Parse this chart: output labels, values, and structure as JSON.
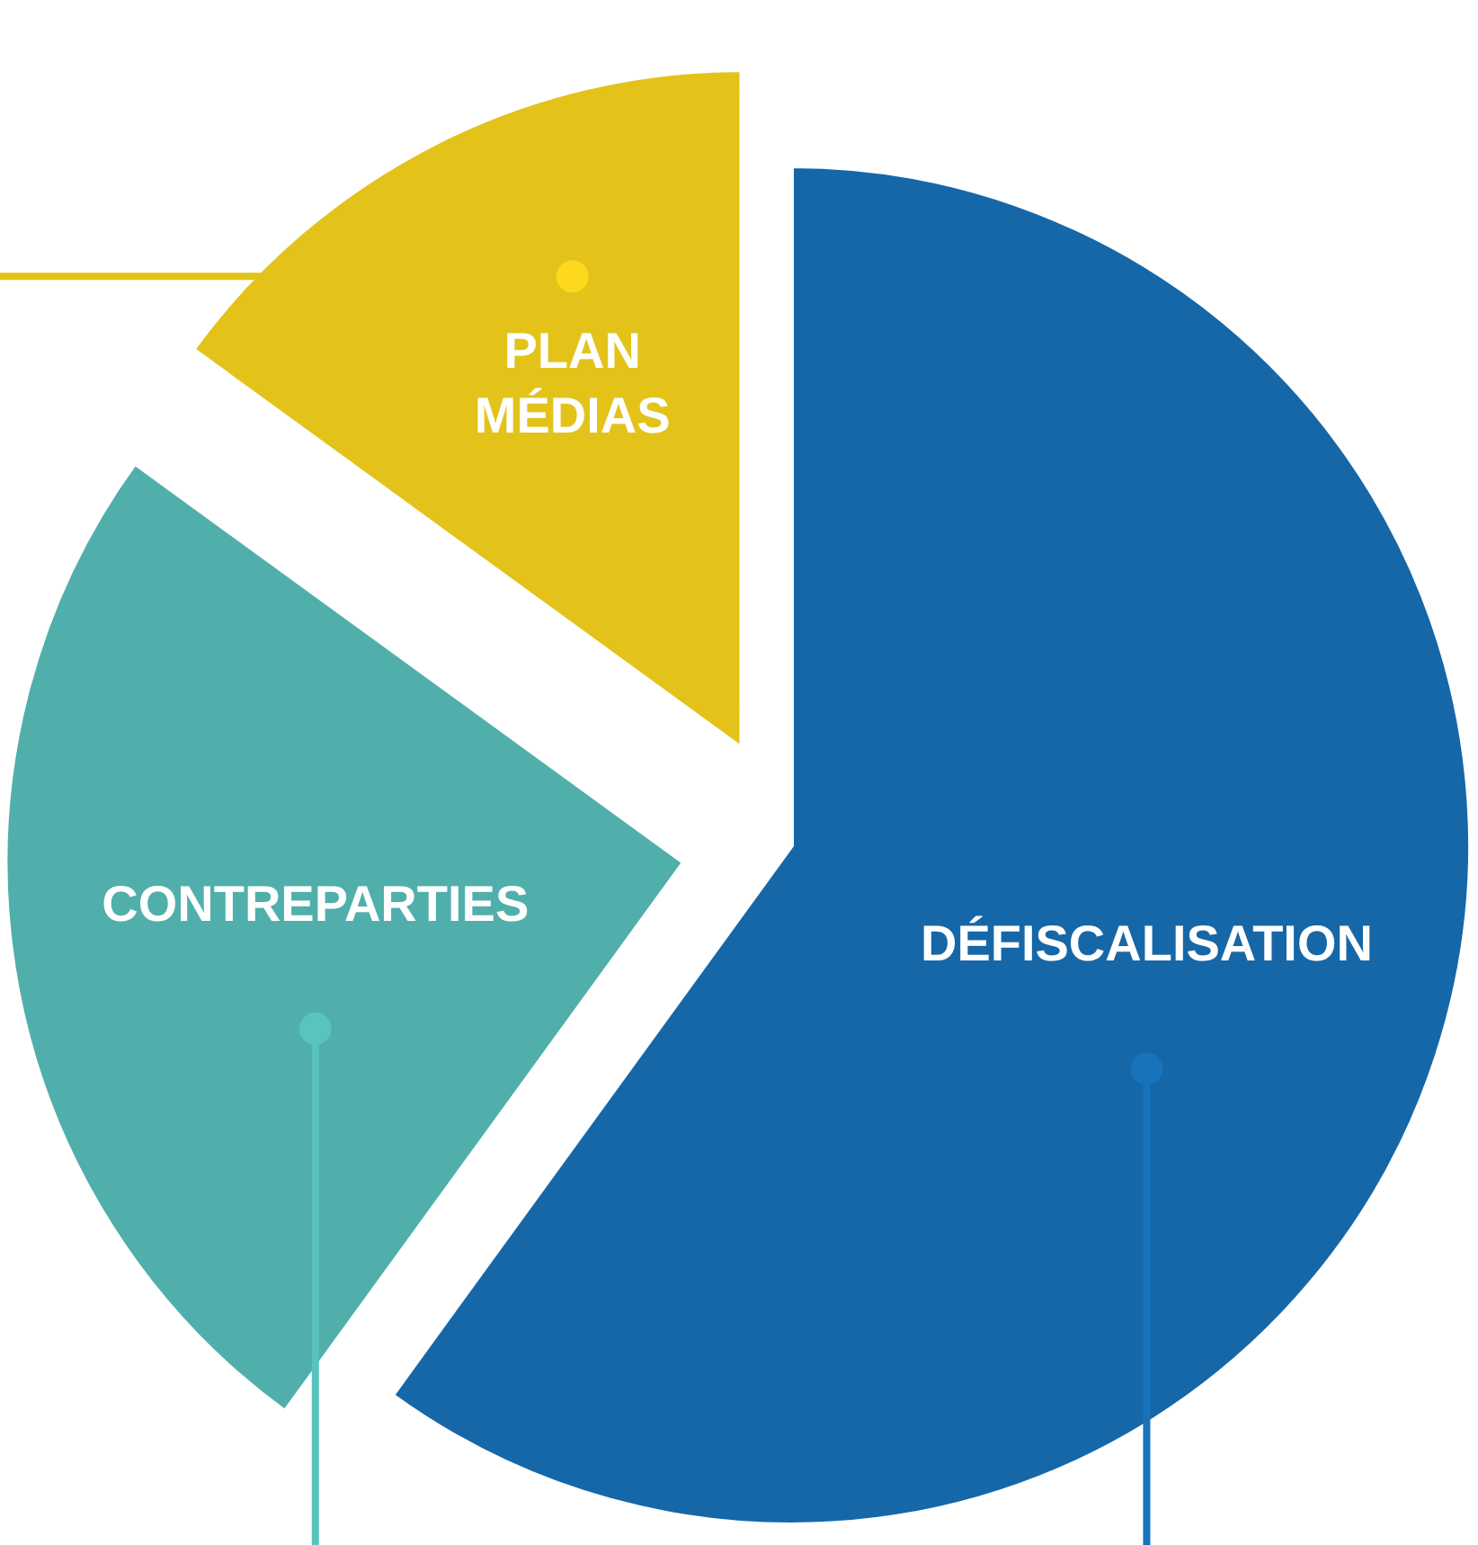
{
  "chart_data": {
    "type": "pie",
    "categories": [
      "DÉFISCALISATION",
      "CONTREPARTIES",
      "PLAN MÉDIAS"
    ],
    "values": [
      60,
      25,
      15
    ],
    "colors": [
      "#1667a8",
      "#50afab",
      "#e3c31a"
    ]
  }
}
